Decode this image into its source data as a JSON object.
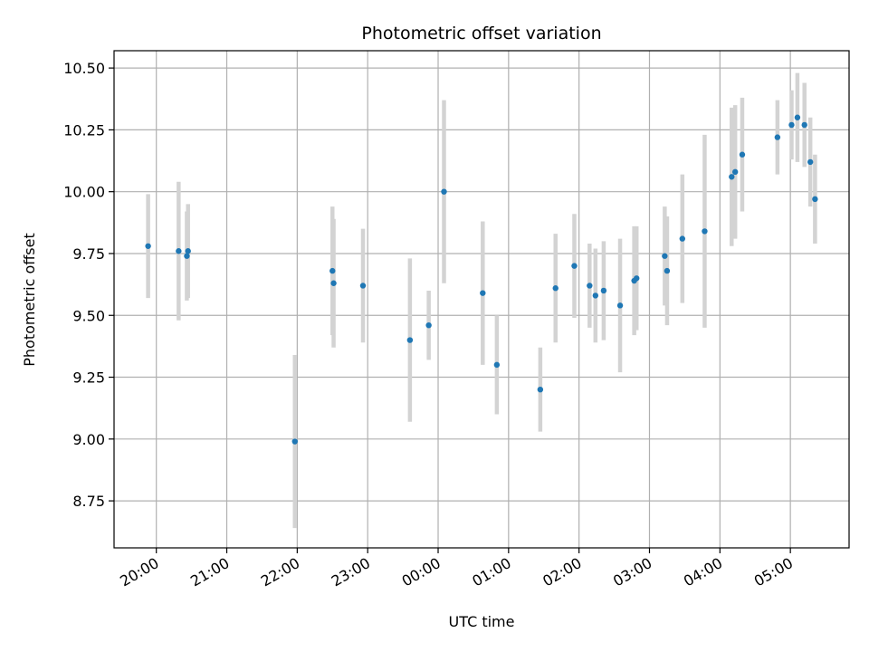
{
  "chart_data": {
    "type": "scatter",
    "title": "Photometric offset variation",
    "xlabel": "UTC time",
    "ylabel": "Photometric offset",
    "grid": true,
    "xlim": [
      "19:24",
      "29:50"
    ],
    "ylim": [
      8.56,
      10.57
    ],
    "x_ticks": [
      {
        "at": "20:00",
        "label": "20:00"
      },
      {
        "at": "21:00",
        "label": "21:00"
      },
      {
        "at": "22:00",
        "label": "22:00"
      },
      {
        "at": "23:00",
        "label": "23:00"
      },
      {
        "at": "24:00",
        "label": "00:00"
      },
      {
        "at": "25:00",
        "label": "01:00"
      },
      {
        "at": "26:00",
        "label": "02:00"
      },
      {
        "at": "27:00",
        "label": "03:00"
      },
      {
        "at": "28:00",
        "label": "04:00"
      },
      {
        "at": "29:00",
        "label": "05:00"
      }
    ],
    "y_ticks": [
      "8.75",
      "9.00",
      "9.25",
      "9.50",
      "9.75",
      "10.00",
      "10.25",
      "10.50"
    ],
    "colors": {
      "point": "#1f77b4",
      "errorbar": "#d3d3d3",
      "grid": "#b0b0b0"
    },
    "points": [
      {
        "x": "19:53",
        "y": 9.78,
        "err": 0.21
      },
      {
        "x": "20:19",
        "y": 9.76,
        "err": 0.28
      },
      {
        "x": "20:26",
        "y": 9.74,
        "err": 0.18
      },
      {
        "x": "20:27",
        "y": 9.76,
        "err": 0.19
      },
      {
        "x": "21:58",
        "y": 8.99,
        "err": 0.35
      },
      {
        "x": "22:30",
        "y": 9.68,
        "err": 0.26
      },
      {
        "x": "22:31",
        "y": 9.63,
        "err": 0.26
      },
      {
        "x": "22:56",
        "y": 9.62,
        "err": 0.23
      },
      {
        "x": "23:36",
        "y": 9.4,
        "err": 0.33
      },
      {
        "x": "23:52",
        "y": 9.46,
        "err": 0.14
      },
      {
        "x": "24:05",
        "y": 10.0,
        "err": 0.37
      },
      {
        "x": "24:38",
        "y": 9.59,
        "err": 0.29
      },
      {
        "x": "24:50",
        "y": 9.3,
        "err": 0.2
      },
      {
        "x": "25:27",
        "y": 9.2,
        "err": 0.17
      },
      {
        "x": "25:40",
        "y": 9.61,
        "err": 0.22
      },
      {
        "x": "25:56",
        "y": 9.7,
        "err": 0.21
      },
      {
        "x": "26:09",
        "y": 9.62,
        "err": 0.17
      },
      {
        "x": "26:14",
        "y": 9.58,
        "err": 0.19
      },
      {
        "x": "26:21",
        "y": 9.6,
        "err": 0.2
      },
      {
        "x": "26:35",
        "y": 9.54,
        "err": 0.27
      },
      {
        "x": "26:47",
        "y": 9.64,
        "err": 0.22
      },
      {
        "x": "26:49",
        "y": 9.65,
        "err": 0.21
      },
      {
        "x": "27:13",
        "y": 9.74,
        "err": 0.2
      },
      {
        "x": "27:15",
        "y": 9.68,
        "err": 0.22
      },
      {
        "x": "27:28",
        "y": 9.81,
        "err": 0.26
      },
      {
        "x": "27:47",
        "y": 9.84,
        "err": 0.39
      },
      {
        "x": "28:10",
        "y": 10.06,
        "err": 0.28
      },
      {
        "x": "28:13",
        "y": 10.08,
        "err": 0.27
      },
      {
        "x": "28:19",
        "y": 10.15,
        "err": 0.23
      },
      {
        "x": "28:49",
        "y": 10.22,
        "err": 0.15
      },
      {
        "x": "29:01",
        "y": 10.27,
        "err": 0.14
      },
      {
        "x": "29:06",
        "y": 10.3,
        "err": 0.18
      },
      {
        "x": "29:12",
        "y": 10.27,
        "err": 0.17
      },
      {
        "x": "29:17",
        "y": 10.12,
        "err": 0.18
      },
      {
        "x": "29:21",
        "y": 9.97,
        "err": 0.18
      }
    ]
  }
}
